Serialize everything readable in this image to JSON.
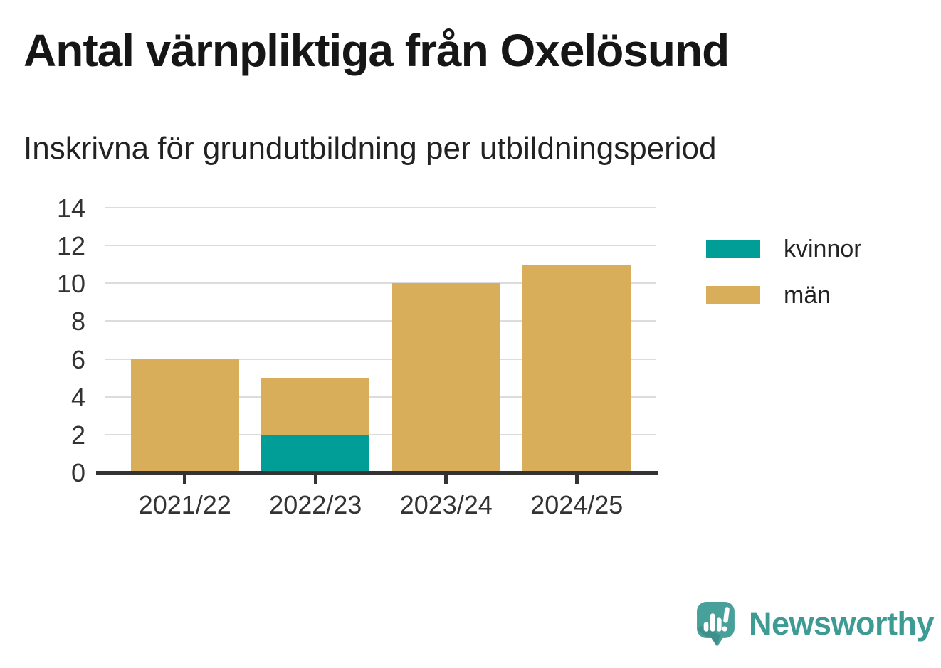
{
  "chart_data": {
    "type": "bar",
    "stacked": true,
    "title": "Antal värnpliktiga från Oxelösund",
    "subtitle": "Inskrivna för grundutbildning per utbildningsperiod",
    "categories": [
      "2021/22",
      "2022/23",
      "2023/24",
      "2024/25"
    ],
    "series": [
      {
        "name": "kvinnor",
        "color": "#009E96",
        "values": [
          0,
          2,
          0,
          0
        ]
      },
      {
        "name": "män",
        "color": "#D9AE5B",
        "values": [
          6,
          3,
          10,
          11
        ]
      }
    ],
    "totals": [
      6,
      5,
      10,
      11
    ],
    "xlabel": "",
    "ylabel": "",
    "ylim": [
      0,
      14
    ],
    "yticks": [
      0,
      2,
      4,
      6,
      8,
      10,
      12,
      14
    ],
    "grid": true,
    "legend_position": "right",
    "colors": {
      "axis": "#333333",
      "gridline": "#DCDCDC",
      "tick_text": "#333333"
    }
  },
  "footer": {
    "brand": "Newsworthy",
    "brand_color": "#3D9B94",
    "logo_icon": "bar-chart-speech-bubble",
    "logo_bubble_color": "#47A09A"
  }
}
